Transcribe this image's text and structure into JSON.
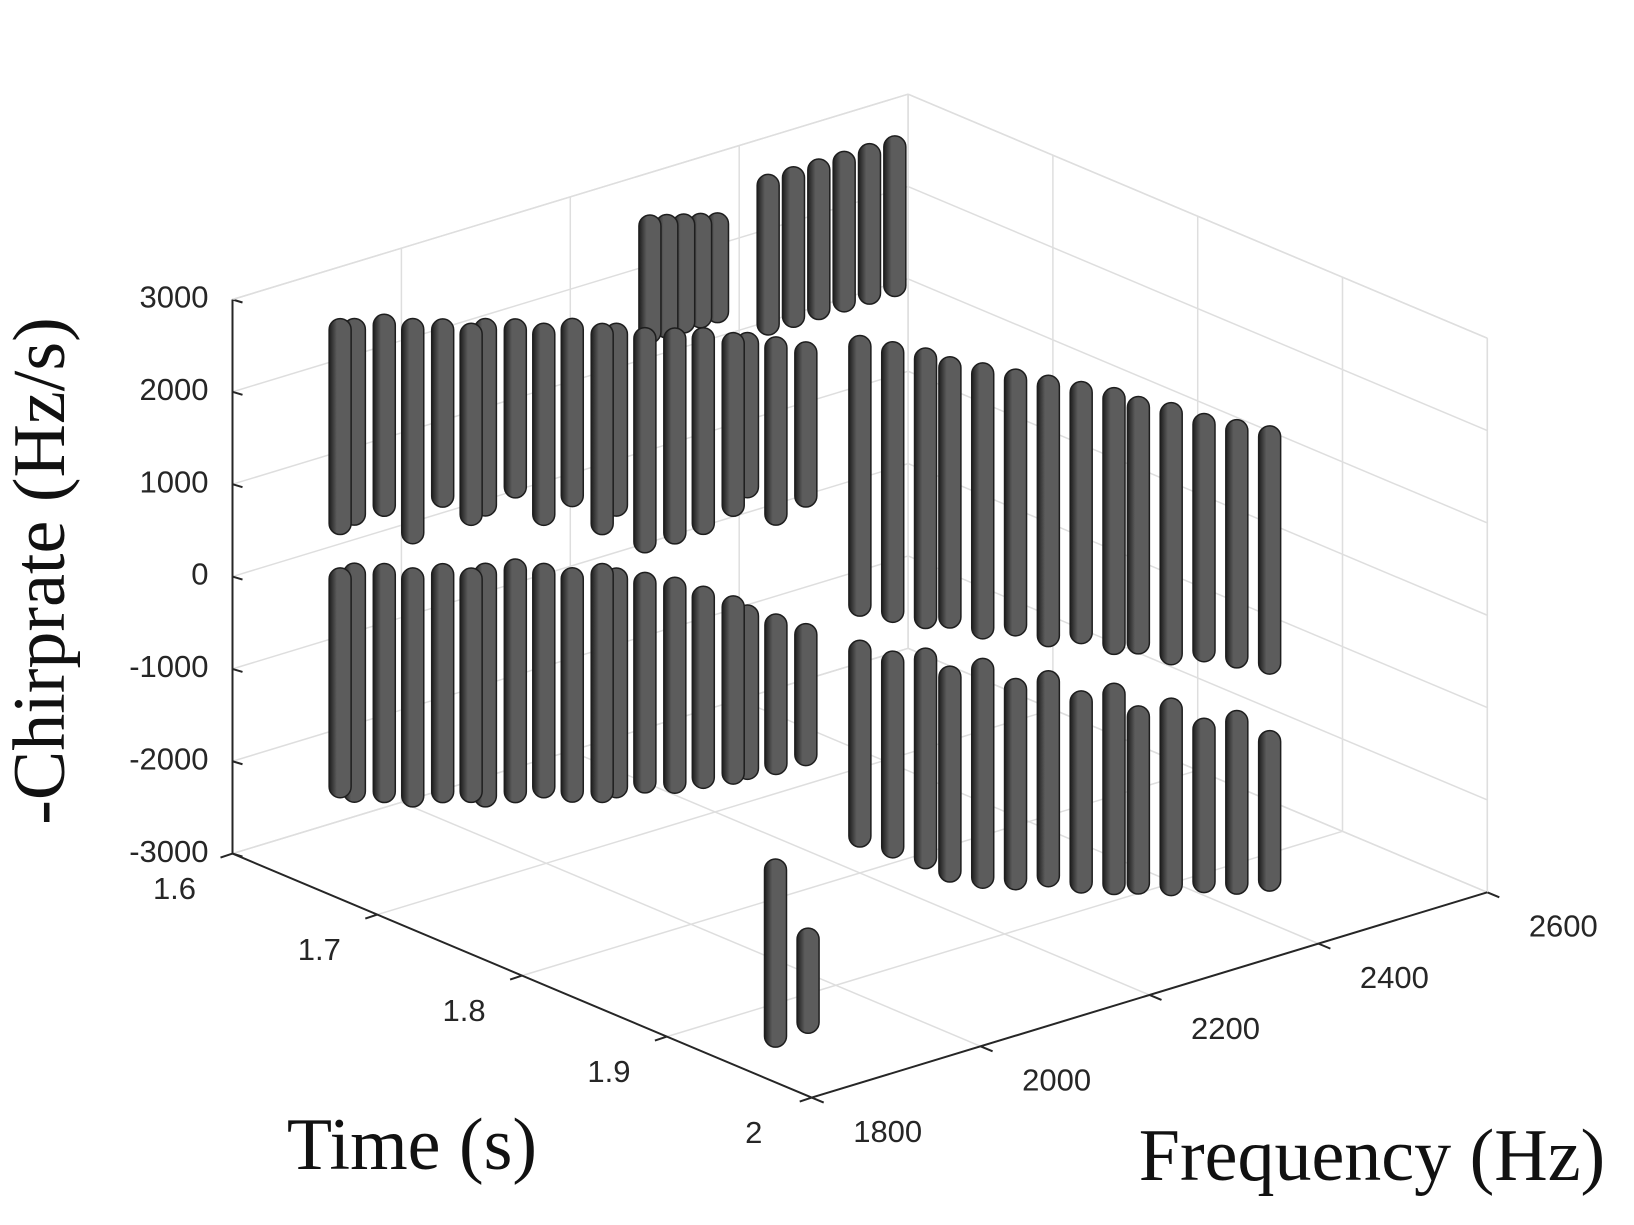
{
  "chart_data": {
    "type": "strip3d",
    "xlabel": "Time (s)",
    "ylabel": "Frequency (Hz)",
    "zlabel": "-Chirprate (Hz/s)",
    "xlim": [
      1.6,
      2
    ],
    "xticks": [
      1.6,
      1.7,
      1.8,
      1.9,
      2
    ],
    "ylim": [
      1800,
      2600
    ],
    "yticks": [
      1800,
      2000,
      2200,
      2400,
      2600
    ],
    "zlim": [
      -3000,
      3000
    ],
    "zticks": [
      -3000,
      -2000,
      -1000,
      0,
      1000,
      2000,
      3000
    ],
    "grid": true,
    "color": "#5c5c5c",
    "edge_color": "#1e1e1e",
    "strips": {
      "time": [
        1.651,
        1.655,
        1.664,
        1.672,
        1.681,
        1.689,
        1.693,
        1.702,
        1.71,
        1.718,
        1.727,
        1.731,
        1.739,
        1.748,
        1.756,
        1.765,
        1.769,
        1.777,
        1.786,
        1.651,
        1.655,
        1.664,
        1.672,
        1.681,
        1.689,
        1.693,
        1.702,
        1.71,
        1.718,
        1.727,
        1.731,
        1.739,
        1.748,
        1.756,
        1.765,
        1.769,
        1.777,
        1.786,
        1.8,
        1.811,
        1.822,
        1.833,
        1.844,
        1.855,
        1.866,
        1.877,
        1.888,
        1.899,
        1.91,
        1.921,
        1.932,
        1.943,
        1.8,
        1.811,
        1.822,
        1.833,
        1.844,
        1.855,
        1.866,
        1.877,
        1.888,
        1.899,
        1.91,
        1.921,
        1.932,
        1.943,
        1.62,
        1.62,
        1.62,
        1.62,
        1.62,
        1.62,
        1.62,
        1.62,
        1.62,
        1.62,
        1.62,
        1.975,
        1.98
      ],
      "frequency": [
        1840,
        1850,
        1870,
        1890,
        1910,
        1930,
        1940,
        1960,
        1980,
        2000,
        2020,
        2030,
        2050,
        2070,
        2090,
        2110,
        2120,
        2140,
        2160,
        1840,
        1850,
        1870,
        1890,
        1910,
        1930,
        1940,
        1960,
        1980,
        2000,
        2020,
        2030,
        2050,
        2070,
        2090,
        2110,
        2120,
        2140,
        2160,
        2200,
        2220,
        2240,
        2250,
        2270,
        2290,
        2310,
        2330,
        2350,
        2360,
        2380,
        2400,
        2420,
        2440,
        2200,
        2220,
        2240,
        2250,
        2270,
        2290,
        2310,
        2330,
        2350,
        2360,
        2380,
        2400,
        2420,
        2440,
        2400,
        2430,
        2460,
        2490,
        2520,
        2550,
        2260,
        2280,
        2300,
        2320,
        2340,
        1800,
        1830
      ],
      "chirp_min": [
        800,
        900,
        1000,
        700,
        1100,
        900,
        1000,
        1200,
        900,
        1100,
        800,
        1000,
        600,
        700,
        800,
        1000,
        1200,
        900,
        1100,
        -2050,
        -2100,
        -2100,
        -2150,
        -2100,
        -2100,
        -2150,
        -2100,
        -2050,
        -2100,
        -2100,
        -2050,
        -2000,
        -2000,
        -1950,
        -1900,
        -1850,
        -1800,
        -1700,
        -100,
        -150,
        -200,
        -150,
        -250,
        -200,
        -300,
        -250,
        -350,
        -300,
        -400,
        -350,
        -400,
        -450,
        -2600,
        -2700,
        -2800,
        -2900,
        -2950,
        -2950,
        -2900,
        -2950,
        -2950,
        -2900,
        -2900,
        -2850,
        -2850,
        -2800,
        1200,
        1200,
        1200,
        1200,
        1200,
        1200,
        1500,
        1500,
        1500,
        1500,
        1500,
        -2500,
        -2400
      ],
      "chirp_max": [
        2900,
        2900,
        2950,
        2900,
        2900,
        2850,
        2900,
        2900,
        2850,
        2900,
        2850,
        2850,
        2800,
        2800,
        2800,
        2750,
        2750,
        2700,
        2650,
        200,
        250,
        250,
        200,
        250,
        200,
        250,
        300,
        250,
        200,
        250,
        200,
        150,
        100,
        0,
        -100,
        -200,
        -300,
        -400,
        2700,
        2650,
        2600,
        2550,
        2500,
        2450,
        2400,
        2350,
        2300,
        2250,
        2200,
        2100,
        2050,
        2000,
        -600,
        -700,
        -650,
        -800,
        -700,
        -900,
        -800,
        -1000,
        -900,
        -1100,
        -1000,
        -1200,
        -1100,
        -1300,
        2700,
        2700,
        2700,
        2700,
        2700,
        2700,
        2650,
        2600,
        2550,
        2500,
        2450,
        -700,
        -1500
      ]
    }
  }
}
